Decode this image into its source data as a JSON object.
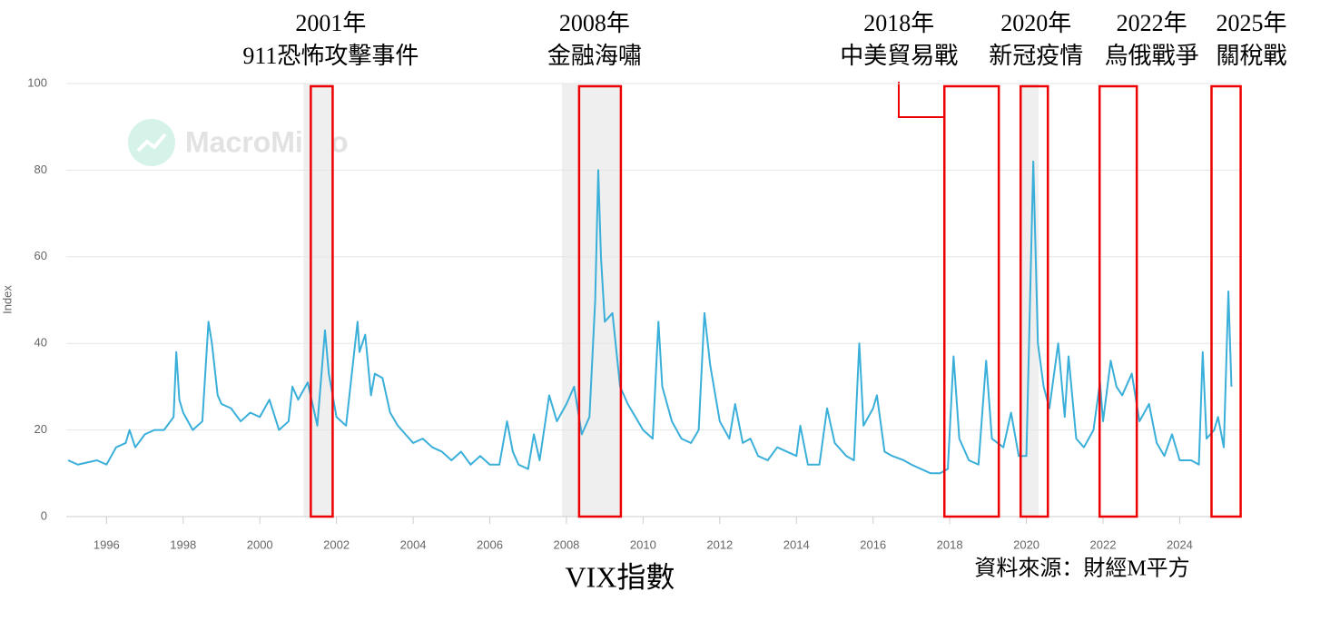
{
  "chart_data": {
    "type": "line",
    "y_label": "Index",
    "watermark": "MacroMicro",
    "title": "VIX指數",
    "source": "資料來源：財經M平方",
    "xlim": [
      1994.95,
      2025.6
    ],
    "xticks": [
      1996,
      1998,
      2000,
      2002,
      2004,
      2006,
      2008,
      2010,
      2012,
      2014,
      2016,
      2018,
      2020,
      2022,
      2024
    ],
    "ylim": [
      0,
      100
    ],
    "yticks": [
      0,
      20,
      40,
      60,
      80,
      100
    ],
    "grid": true,
    "shaded_ranges": [
      [
        2001.14,
        2001.93
      ],
      [
        2007.88,
        2009.42
      ],
      [
        2019.87,
        2020.32
      ]
    ],
    "x": [
      1995.0,
      1995.25,
      1995.5,
      1995.75,
      1996.0,
      1996.25,
      1996.5,
      1996.6,
      1996.75,
      1997.0,
      1997.25,
      1997.5,
      1997.75,
      1997.82,
      1997.9,
      1998.0,
      1998.25,
      1998.5,
      1998.66,
      1998.75,
      1998.9,
      1999.0,
      1999.25,
      1999.5,
      1999.75,
      2000.0,
      2000.25,
      2000.5,
      2000.75,
      2000.85,
      2001.0,
      2001.25,
      2001.5,
      2001.7,
      2001.8,
      2002.0,
      2002.25,
      2002.55,
      2002.6,
      2002.75,
      2002.9,
      2003.0,
      2003.2,
      2003.4,
      2003.6,
      2003.8,
      2004.0,
      2004.25,
      2004.5,
      2004.75,
      2005.0,
      2005.25,
      2005.5,
      2005.75,
      2006.0,
      2006.25,
      2006.45,
      2006.6,
      2006.75,
      2007.0,
      2007.15,
      2007.3,
      2007.55,
      2007.75,
      2008.0,
      2008.2,
      2008.4,
      2008.6,
      2008.75,
      2008.83,
      2008.9,
      2009.0,
      2009.2,
      2009.4,
      2009.6,
      2009.8,
      2010.0,
      2010.25,
      2010.4,
      2010.5,
      2010.75,
      2011.0,
      2011.25,
      2011.45,
      2011.6,
      2011.75,
      2012.0,
      2012.25,
      2012.4,
      2012.6,
      2012.8,
      2013.0,
      2013.25,
      2013.5,
      2013.75,
      2014.0,
      2014.1,
      2014.3,
      2014.6,
      2014.8,
      2015.0,
      2015.3,
      2015.5,
      2015.64,
      2015.75,
      2016.0,
      2016.1,
      2016.3,
      2016.5,
      2016.8,
      2017.0,
      2017.25,
      2017.5,
      2017.75,
      2017.95,
      2018.1,
      2018.25,
      2018.5,
      2018.75,
      2018.95,
      2019.1,
      2019.4,
      2019.6,
      2019.8,
      2020.0,
      2020.18,
      2020.3,
      2020.45,
      2020.6,
      2020.83,
      2021.0,
      2021.1,
      2021.3,
      2021.5,
      2021.75,
      2021.92,
      2022.0,
      2022.2,
      2022.35,
      2022.5,
      2022.75,
      2022.95,
      2023.2,
      2023.4,
      2023.6,
      2023.8,
      2024.0,
      2024.3,
      2024.5,
      2024.6,
      2024.7,
      2024.9,
      2025.0,
      2025.15,
      2025.27,
      2025.35
    ],
    "series": [
      {
        "color": "#3aafd9",
        "values": [
          13,
          12,
          12.5,
          13,
          12,
          16,
          17,
          20,
          16,
          19,
          20,
          20,
          23,
          38,
          27,
          24,
          20,
          22,
          45,
          40,
          28,
          26,
          25,
          22,
          24,
          23,
          27,
          20,
          22,
          30,
          27,
          31,
          21,
          43,
          33,
          23,
          21,
          45,
          38,
          42,
          28,
          33,
          32,
          24,
          21,
          19,
          17,
          18,
          16,
          15,
          13,
          15,
          12,
          14,
          12,
          12,
          22,
          15,
          12,
          11,
          19,
          13,
          28,
          22,
          26,
          30,
          19,
          23,
          50,
          80,
          60,
          45,
          47,
          30,
          26,
          23,
          20,
          18,
          45,
          30,
          22,
          18,
          17,
          20,
          47,
          35,
          22,
          18,
          26,
          17,
          18,
          14,
          13,
          16,
          15,
          14,
          21,
          12,
          12,
          25,
          17,
          14,
          13,
          40,
          21,
          25,
          28,
          15,
          14,
          13,
          12,
          11,
          10,
          10,
          11,
          37,
          18,
          13,
          12,
          36,
          18,
          16,
          24,
          14,
          14,
          82,
          40,
          30,
          25,
          40,
          23,
          37,
          18,
          16,
          20,
          31,
          22,
          36,
          30,
          28,
          33,
          22,
          26,
          17,
          14,
          19,
          13,
          13,
          12,
          38,
          18,
          20,
          23,
          16,
          52,
          30
        ]
      }
    ],
    "annotations": [
      {
        "lines": [
          "2001年",
          "911恐怖攻擊事件"
        ],
        "x_range": [
          2001.33,
          2001.9
        ]
      },
      {
        "lines": [
          "2008年",
          "金融海嘯"
        ],
        "x_range": [
          2008.33,
          2009.42
        ]
      },
      {
        "lines": [
          "2018年",
          "中美貿易戰"
        ],
        "x_range": [
          2017.86,
          2019.28
        ]
      },
      {
        "lines": [
          "2020年",
          "新冠疫情"
        ],
        "x_range": [
          2019.85,
          2020.56
        ]
      },
      {
        "lines": [
          "2022年",
          "烏俄戰爭"
        ],
        "x_range": [
          2021.91,
          2022.88
        ]
      },
      {
        "lines": [
          "2025年",
          "關稅戰"
        ],
        "x_range": [
          2024.83,
          2025.59
        ]
      }
    ]
  }
}
